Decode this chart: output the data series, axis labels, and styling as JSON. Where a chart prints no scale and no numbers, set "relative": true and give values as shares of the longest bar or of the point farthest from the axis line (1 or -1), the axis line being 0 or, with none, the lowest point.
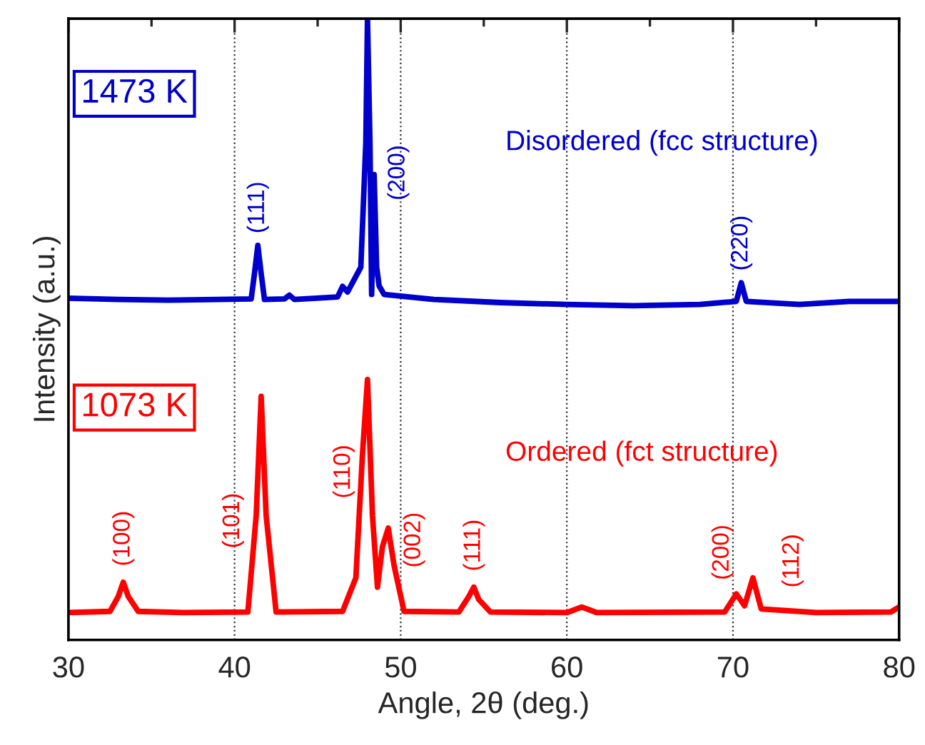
{
  "chart_data": {
    "type": "line",
    "relative": true,
    "xlabel": "Angle, 2θ (deg.)",
    "ylabel": "Intensity (a.u.)",
    "xlim": [
      30,
      80
    ],
    "xticks": [
      30,
      {
        "value": 35,
        "label": null
      },
      40,
      {
        "value": 45,
        "label": null
      },
      50,
      {
        "value": 55,
        "label": null
      },
      60,
      {
        "value": 65,
        "label": null
      },
      70,
      {
        "value": 75,
        "label": null
      },
      80
    ],
    "grid": "x",
    "legend": false,
    "marker": "none",
    "line_style": "solid",
    "series": [
      {
        "name": "1473 K",
        "color": "#0000cc",
        "x": [
          30,
          33,
          36,
          39,
          41.0,
          41.2,
          41.4,
          41.6,
          41.8,
          43.0,
          43.3,
          43.6,
          46.2,
          46.5,
          46.8,
          47.6,
          47.9,
          48.0,
          48.15,
          48.25,
          48.4,
          48.55,
          48.7,
          49.0,
          52,
          56,
          60,
          64,
          68,
          70.2,
          70.5,
          70.8,
          74,
          77,
          80
        ],
        "values": [
          0.55,
          0.548,
          0.547,
          0.548,
          0.549,
          0.59,
          0.635,
          0.59,
          0.548,
          0.549,
          0.555,
          0.548,
          0.552,
          0.569,
          0.56,
          0.6,
          0.8,
          1.0,
          0.8,
          0.556,
          0.749,
          0.6,
          0.57,
          0.556,
          0.548,
          0.543,
          0.54,
          0.538,
          0.54,
          0.545,
          0.575,
          0.545,
          0.54,
          0.545,
          0.545
        ]
      },
      {
        "name": "1073 K",
        "color": "#ff0000",
        "x": [
          30,
          32.5,
          33.0,
          33.3,
          33.6,
          34.2,
          37,
          40.8,
          41.3,
          41.6,
          41.9,
          42.5,
          46.5,
          47.3,
          47.7,
          48.0,
          48.3,
          48.6,
          48.9,
          49.25,
          49.6,
          50.2,
          53.5,
          54.1,
          54.4,
          54.7,
          55.4,
          60.0,
          60.9,
          61.8,
          69.5,
          70.2,
          70.7,
          71.2,
          71.7,
          75,
          79.5,
          80
        ],
        "values": [
          0.044,
          0.046,
          0.07,
          0.093,
          0.07,
          0.046,
          0.044,
          0.045,
          0.2,
          0.392,
          0.2,
          0.045,
          0.046,
          0.1,
          0.3,
          0.419,
          0.2,
          0.085,
          0.15,
          0.18,
          0.12,
          0.046,
          0.045,
          0.07,
          0.085,
          0.065,
          0.045,
          0.044,
          0.053,
          0.044,
          0.045,
          0.074,
          0.055,
          0.1,
          0.05,
          0.044,
          0.045,
          0.053
        ]
      }
    ],
    "annotations": [
      {
        "text": "(111)",
        "x": 41.4,
        "y": 0.635
      },
      "(200)",
      {
        "text": "(220)",
        "x": 70.5,
        "y": 0.575
      },
      "Disordered (fcc structure)",
      {
        "text": "(100)",
        "x": 33.3,
        "y": 0.093
      },
      "(101)",
      {
        "text": "(110)",
        "x": 48.0,
        "y": 0.419
      },
      {
        "text": "(002)",
        "x": 49.25,
        "y": 0.18
      },
      {
        "text": "(111)",
        "x": 54.4,
        "y": 0.085
      },
      {
        "text": "(200)",
        "x": 70.2,
        "y": 0.074
      },
      {
        "text": "(112)",
        "x": 71.2,
        "y": 0.1
      },
      "Ordered (fct structure)"
    ]
  }
}
